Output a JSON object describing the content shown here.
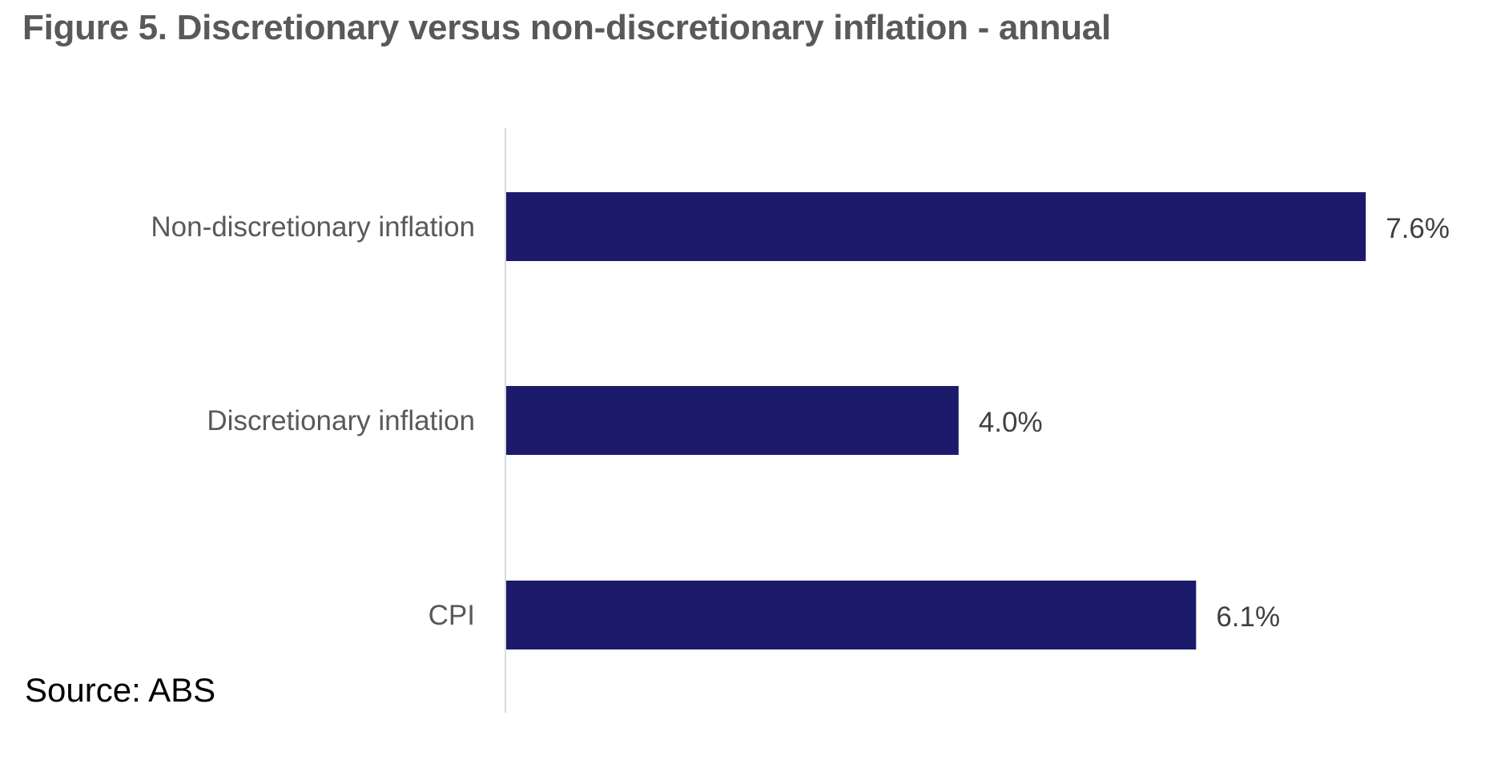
{
  "chart_data": {
    "type": "bar",
    "orientation": "horizontal",
    "title": "Figure 5. Discretionary versus non-discretionary inflation - annual",
    "categories": [
      "Non-discretionary inflation",
      "Discretionary inflation",
      "CPI"
    ],
    "values": [
      7.6,
      4.0,
      6.1
    ],
    "value_labels": [
      "7.6%",
      "4.0%",
      "6.1%"
    ],
    "unit": "%",
    "xlim": [
      0,
      8.5
    ],
    "grid": false,
    "legend": "none",
    "bar_color": "#1b1a6b",
    "axis_color": "#d9d9d9"
  },
  "source": "Source: ABS"
}
